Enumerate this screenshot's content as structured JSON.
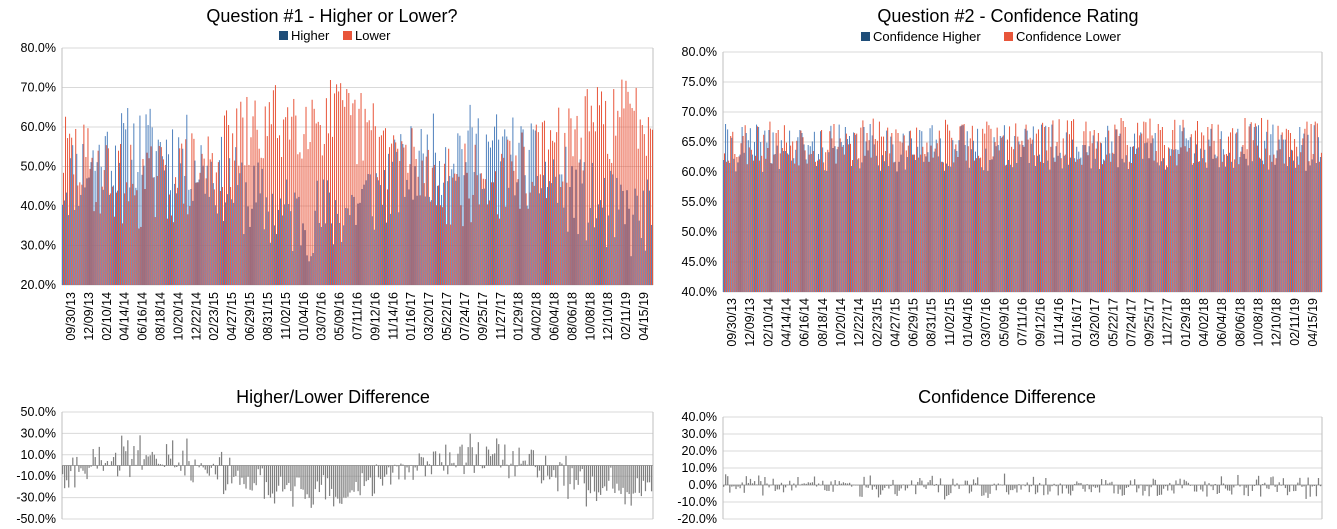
{
  "colors": {
    "higher": "#4F81BD",
    "lower": "#E8553A",
    "higher_dark": "#1F4E79",
    "lower_dark": "#B03A20",
    "diff": "#7F7F7F",
    "grid": "#D9D9D9",
    "axis": "#BFBFBF",
    "legend_higher": "#1F4E79",
    "legend_lower": "#E8553A"
  },
  "x_tick_labels": [
    "09/30/13",
    "12/09/13",
    "02/10/14",
    "04/14/14",
    "06/16/14",
    "08/18/14",
    "10/20/14",
    "12/22/14",
    "02/23/15",
    "04/27/15",
    "06/29/15",
    "08/31/15",
    "11/02/15",
    "01/04/16",
    "03/07/16",
    "05/09/16",
    "07/11/16",
    "09/12/16",
    "11/14/16",
    "01/16/17",
    "03/20/17",
    "05/22/17",
    "07/24/17",
    "09/25/17",
    "11/27/17",
    "01/29/18",
    "04/02/18",
    "06/04/18",
    "08/06/18",
    "10/08/18",
    "12/10/18",
    "02/11/19",
    "04/15/19"
  ],
  "chart_data": [
    {
      "id": "q1",
      "type": "bar",
      "title": "Question #1 - Higher or Lower?",
      "legend": [
        "Higher",
        "Lower"
      ],
      "legend_position": "top",
      "y_tick_labels": [
        "20.0%",
        "30.0%",
        "40.0%",
        "50.0%",
        "60.0%",
        "70.0%",
        "80.0%"
      ],
      "ylim": [
        20,
        80
      ],
      "grid": true,
      "n_points": 290,
      "series": [
        {
          "name": "Higher",
          "color_key": "higher",
          "base": 46,
          "amp": 9,
          "noise": 11,
          "min": 20,
          "max": 80,
          "seed": 11
        },
        {
          "name": "Lower",
          "color_key": "lower",
          "base": 54,
          "amp": -9,
          "noise": 11,
          "min": 20,
          "max": 80,
          "seed": 29
        }
      ]
    },
    {
      "id": "q2",
      "type": "bar",
      "title": "Question #2 - Confidence Rating",
      "legend": [
        "Confidence Higher",
        "Confidence Lower"
      ],
      "legend_position": "top",
      "y_tick_labels": [
        "40.0%",
        "45.0%",
        "50.0%",
        "55.0%",
        "60.0%",
        "65.0%",
        "70.0%",
        "75.0%",
        "80.0%"
      ],
      "ylim": [
        40,
        80
      ],
      "grid": true,
      "n_points": 290,
      "series": [
        {
          "name": "Confidence Higher",
          "color_key": "higher",
          "base": 64,
          "amp": 0,
          "noise": 4,
          "min": 44,
          "max": 78,
          "seed": 41
        },
        {
          "name": "Confidence Lower",
          "color_key": "lower",
          "base": 65,
          "amp": 0,
          "noise": 4,
          "min": 45,
          "max": 80,
          "seed": 53
        }
      ]
    },
    {
      "id": "d1",
      "type": "bar",
      "title": "Higher/Lower Difference",
      "y_tick_labels": [
        "-50.0%",
        "-30.0%",
        "-10.0%",
        "10.0%",
        "30.0%",
        "50.0%"
      ],
      "ylim": [
        -50,
        50
      ],
      "grid": true,
      "n_points": 290,
      "derived_from": "q1",
      "series": [
        {
          "name": "",
          "color_key": "diff"
        }
      ]
    },
    {
      "id": "d2",
      "type": "bar",
      "title": "Confidence Difference",
      "y_tick_labels": [
        "-20.0%",
        "-10.0%",
        "0.0%",
        "10.0%",
        "20.0%",
        "30.0%",
        "40.0%"
      ],
      "ylim": [
        -20,
        40
      ],
      "grid": true,
      "n_points": 290,
      "derived_from": "q2",
      "series": [
        {
          "name": "",
          "color_key": "diff"
        }
      ]
    }
  ]
}
